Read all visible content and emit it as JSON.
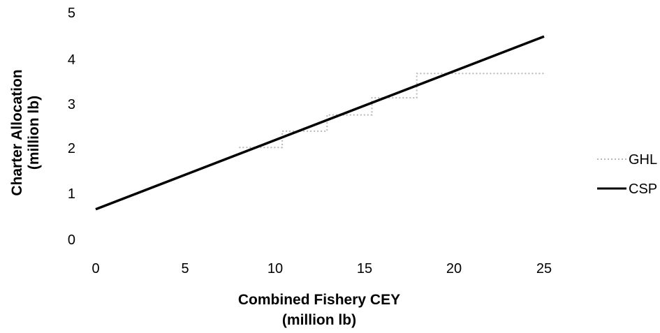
{
  "chart_data": {
    "type": "line",
    "title": "",
    "xlabel": [
      "Combined Fishery CEY",
      "(million lb)"
    ],
    "ylabel": [
      "Charter Allocation",
      "(million lb)"
    ],
    "xlim": [
      0,
      25
    ],
    "ylim": [
      0,
      5
    ],
    "xticks": [
      "0",
      "5",
      "10",
      "15",
      "20",
      "25"
    ],
    "yticks": [
      "0",
      "1",
      "2",
      "3",
      "4",
      "5"
    ],
    "grid": false,
    "legend_position": "right",
    "series": [
      {
        "name": "GHL",
        "style": "dotted",
        "color": "#b8b8b8",
        "x": [
          8.0,
          10.4,
          10.4,
          12.9,
          12.9,
          15.4,
          15.4,
          17.9,
          17.9,
          25.0
        ],
        "y": [
          2.01,
          2.01,
          2.37,
          2.37,
          2.73,
          2.73,
          3.11,
          3.11,
          3.65,
          3.65
        ]
      },
      {
        "name": "CSP",
        "style": "solid",
        "color": "#000000",
        "x": [
          0,
          25
        ],
        "y": [
          0.64,
          4.47
        ]
      }
    ]
  }
}
